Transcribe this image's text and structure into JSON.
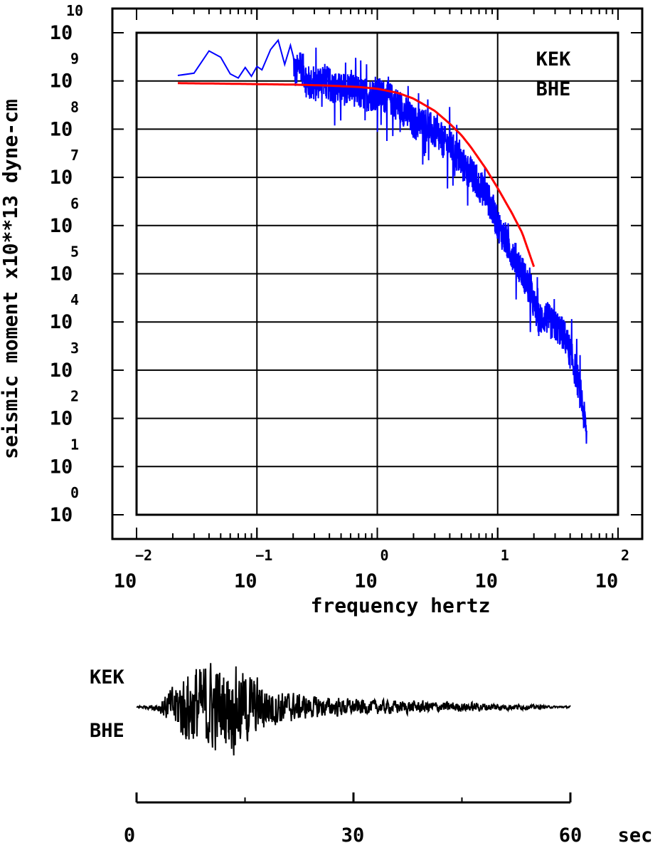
{
  "colors": {
    "observed_spectrum": "#0000ff",
    "model_fit": "#ff0000",
    "axes": "#000000",
    "waveform": "#000000"
  },
  "chart_data": [
    {
      "type": "line",
      "ylabel": "seismic moment x10**13 dyne-cm",
      "xlabel": "frequency hertz",
      "x_scale": "log",
      "y_scale": "log",
      "xlim": [
        0.01,
        100
      ],
      "ylim": [
        1,
        10000000000
      ],
      "grid": true,
      "x_tick_labels": [
        {
          "base": "10",
          "exp": "−2"
        },
        {
          "base": "10",
          "exp": "−1"
        },
        {
          "base": "10",
          "exp": "0"
        },
        {
          "base": "10",
          "exp": "1"
        },
        {
          "base": "10",
          "exp": "2"
        }
      ],
      "y_tick_labels": [
        {
          "base": "10",
          "exp": "0"
        },
        {
          "base": "10",
          "exp": "1"
        },
        {
          "base": "10",
          "exp": "2"
        },
        {
          "base": "10",
          "exp": "3"
        },
        {
          "base": "10",
          "exp": "4"
        },
        {
          "base": "10",
          "exp": "5"
        },
        {
          "base": "10",
          "exp": "6"
        },
        {
          "base": "10",
          "exp": "7"
        },
        {
          "base": "10",
          "exp": "8"
        },
        {
          "base": "10",
          "exp": "9"
        },
        {
          "base": "10",
          "exp": "10"
        }
      ],
      "annotation": [
        "KEK",
        "BHE"
      ],
      "series": [
        {
          "style": "noisy",
          "x": [
            0.022,
            0.03,
            0.04,
            0.05,
            0.06,
            0.07,
            0.08,
            0.09,
            0.1,
            0.11,
            0.13,
            0.15,
            0.17,
            0.19,
            0.21,
            0.23,
            0.26,
            0.3,
            0.35,
            0.4,
            0.5,
            0.6,
            0.7,
            0.85,
            1.0,
            1.3,
            1.6,
            2.0,
            2.5,
            3.0,
            3.5,
            4.0,
            5.0,
            6.0,
            7.0,
            8.0,
            9.0,
            10.0,
            11.0,
            12.0,
            14.0,
            16.0,
            18.0,
            20.0,
            22.0,
            25.0,
            28.0,
            32.0,
            36.0,
            40.0,
            45.0,
            50.0,
            55.0
          ],
          "y": [
            1300000000,
            1450000000,
            4200000000,
            3100000000,
            1400000000,
            1150000000,
            1900000000,
            1250000000,
            2000000000,
            1700000000,
            4500000000,
            7000000000,
            2200000000,
            5500000000,
            1500000000,
            2600000000,
            1100000000,
            800000000,
            1300000000,
            900000000,
            700000000,
            800000000,
            600000000,
            550000000,
            600000000,
            450000000,
            300000000,
            150000000,
            140000000,
            90000000,
            60000000,
            50000000,
            22000000,
            13000000,
            7500000,
            5000000,
            2500000,
            1200000,
            700000,
            450000,
            230000,
            120000,
            60000,
            25000,
            12000,
            14000,
            10000,
            8000,
            5500,
            2500,
            900,
            250,
            45
          ],
          "noise_scale": 0.35
        },
        {
          "style": "smooth",
          "x": [
            0.022,
            0.05,
            0.1,
            0.2,
            0.4,
            0.7,
            1.0,
            1.5,
            2.0,
            3.0,
            4.0,
            5.0,
            6.0,
            8.0,
            10.0,
            13.0,
            16.0,
            20.0
          ],
          "y": [
            900000000,
            880000000,
            860000000,
            840000000,
            800000000,
            750000000,
            690000000,
            560000000,
            430000000,
            240000000,
            130000000,
            75000000,
            42000000,
            15000000,
            6000000,
            1900000,
            700000,
            140000
          ]
        }
      ]
    },
    {
      "type": "line",
      "annotation": [
        "KEK",
        "BHE"
      ],
      "x_unit": "sec",
      "xlim": [
        0,
        60
      ],
      "x_tick_labels": [
        "0",
        "30",
        "60"
      ],
      "minor_ticks": [
        15,
        45
      ],
      "series": [
        {
          "style": "waveform",
          "envelope_x": [
            0,
            2,
            3,
            4,
            5,
            6,
            7,
            8,
            9,
            10,
            11,
            12,
            13,
            14,
            15,
            16,
            17,
            18,
            20,
            22,
            24,
            26,
            28,
            30,
            34,
            38,
            42,
            46,
            50,
            54,
            56,
            58,
            60
          ],
          "envelope_y": [
            0.02,
            0.05,
            0.12,
            0.28,
            0.45,
            0.7,
            0.85,
            0.95,
            0.9,
            1.0,
            0.95,
            0.85,
            1.0,
            0.9,
            0.85,
            0.7,
            0.6,
            0.5,
            0.38,
            0.3,
            0.25,
            0.22,
            0.2,
            0.17,
            0.15,
            0.14,
            0.12,
            0.1,
            0.08,
            0.05,
            0.03,
            0.02,
            0.02
          ]
        }
      ]
    }
  ]
}
